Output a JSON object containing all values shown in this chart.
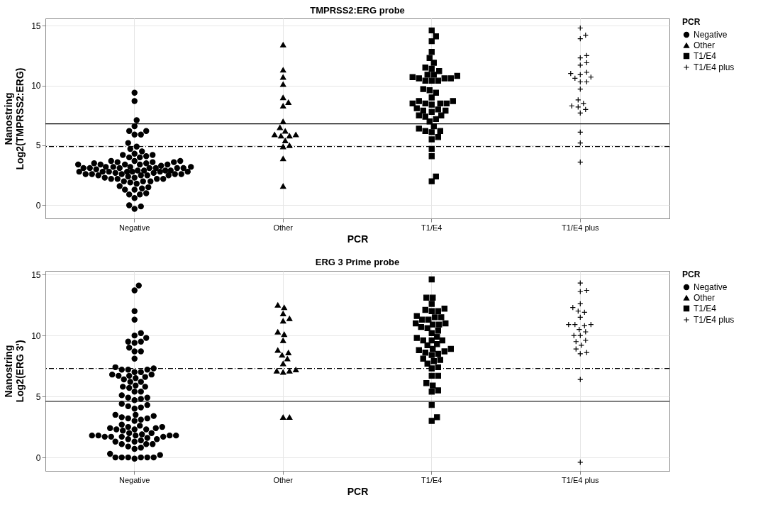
{
  "chart_data": [
    {
      "type": "scatter",
      "title": "TMPRSS2:ERG probe",
      "xlabel": "PCR",
      "ylabel": "Nanostring\nLog2(TMPRSS2:ERG)",
      "legend_title": "PCR",
      "legend": "right",
      "grid": true,
      "categories": [
        "Negative",
        "Other",
        "T1/E4",
        "T1/E4 plus"
      ],
      "ylim": [
        -1.1,
        15.6
      ],
      "yticks": [
        0,
        5,
        10,
        15
      ],
      "ref_lines": [
        {
          "axis": "y",
          "value": 6.8,
          "line_style": "solid"
        },
        {
          "axis": "y",
          "value": 4.9,
          "line_style": "dashed"
        }
      ],
      "series": [
        {
          "name": "Negative",
          "color": "#000000",
          "marker": "circle",
          "x": [
            "Negative",
            "Negative",
            "Negative",
            "Negative",
            "Negative",
            "Negative",
            "Negative",
            "Negative",
            "Negative",
            "Negative",
            "Negative",
            "Negative",
            "Negative",
            "Negative",
            "Negative",
            "Negative",
            "Negative",
            "Negative",
            "Negative",
            "Negative",
            "Negative",
            "Negative",
            "Negative",
            "Negative",
            "Negative",
            "Negative",
            "Negative",
            "Negative",
            "Negative",
            "Negative",
            "Negative",
            "Negative",
            "Negative",
            "Negative",
            "Negative",
            "Negative",
            "Negative",
            "Negative",
            "Negative",
            "Negative",
            "Negative",
            "Negative",
            "Negative",
            "Negative",
            "Negative",
            "Negative",
            "Negative",
            "Negative",
            "Negative",
            "Negative",
            "Negative",
            "Negative",
            "Negative",
            "Negative",
            "Negative",
            "Negative",
            "Negative",
            "Negative",
            "Negative",
            "Negative",
            "Negative",
            "Negative",
            "Negative",
            "Negative",
            "Negative",
            "Negative",
            "Negative",
            "Negative",
            "Negative",
            "Negative",
            "Negative",
            "Negative",
            "Negative",
            "Negative",
            "Negative",
            "Negative",
            "Negative",
            "Negative",
            "Negative",
            "Negative",
            "Negative",
            "Negative",
            "Negative",
            "Negative",
            "Negative",
            "Negative",
            "Negative",
            "Negative",
            "Negative",
            "Negative"
          ],
          "values": [
            4.2,
            2.6,
            2.4,
            2.9,
            2.9,
            3.1,
            1.0,
            3.1,
            2.6,
            2.0,
            4.9,
            3.4,
            3.4,
            2.9,
            2.0,
            3.2,
            2.5,
            -0.1,
            3.1,
            3.7,
            2.8,
            -0.3,
            2.2,
            2.6,
            3.1,
            2.8,
            3.6,
            1.8,
            0.0,
            3.4,
            4.0,
            2.6,
            3.1,
            3.5,
            3.4,
            3.3,
            7.1,
            4.0,
            2.8,
            3.6,
            2.8,
            2.2,
            8.7,
            5.9,
            6.2,
            3.7,
            2.0,
            2.2,
            1.9,
            2.2,
            0.6,
            3.2,
            4.3,
            3.4,
            2.7,
            1.5,
            3.2,
            1.3,
            3.0,
            0.9,
            2.5,
            2.6,
            9.4,
            3.2,
            1.3,
            2.5,
            2.8,
            2.8,
            6.6,
            3.7,
            5.2,
            4.5,
            5.9,
            3.1,
            2.3,
            0.9,
            3.5,
            2.5,
            2.9,
            1.6,
            2.8,
            6.2,
            3.6,
            4.1,
            4.2,
            4.7,
            1.4,
            2.7,
            2.3,
            3.1
          ]
        },
        {
          "name": "Other",
          "color": "#000000",
          "marker": "triangle",
          "x": [
            "Other",
            "Other",
            "Other",
            "Other",
            "Other",
            "Other",
            "Other",
            "Other",
            "Other",
            "Other",
            "Other",
            "Other",
            "Other",
            "Other",
            "Other",
            "Other",
            "Other",
            "Other",
            "Other"
          ],
          "values": [
            10.7,
            13.4,
            5.8,
            4.9,
            3.9,
            1.6,
            9.0,
            7.0,
            6.2,
            5.9,
            8.3,
            8.6,
            6.5,
            5.8,
            11.3,
            10.1,
            5.4,
            5.9,
            5.0
          ]
        },
        {
          "name": "T1/E4",
          "color": "#000000",
          "marker": "square",
          "x": [
            "T1/E4",
            "T1/E4",
            "T1/E4",
            "T1/E4",
            "T1/E4",
            "T1/E4",
            "T1/E4",
            "T1/E4",
            "T1/E4",
            "T1/E4",
            "T1/E4",
            "T1/E4",
            "T1/E4",
            "T1/E4",
            "T1/E4",
            "T1/E4",
            "T1/E4",
            "T1/E4",
            "T1/E4",
            "T1/E4",
            "T1/E4",
            "T1/E4",
            "T1/E4",
            "T1/E4",
            "T1/E4",
            "T1/E4",
            "T1/E4",
            "T1/E4",
            "T1/E4",
            "T1/E4",
            "T1/E4",
            "T1/E4",
            "T1/E4",
            "T1/E4",
            "T1/E4",
            "T1/E4",
            "T1/E4",
            "T1/E4",
            "T1/E4",
            "T1/E4",
            "T1/E4",
            "T1/E4",
            "T1/E4",
            "T1/E4",
            "T1/E4",
            "T1/E4",
            "T1/E4",
            "T1/E4",
            "T1/E4",
            "T1/E4",
            "T1/E4"
          ],
          "values": [
            13.7,
            12.3,
            7.2,
            10.4,
            9.7,
            7.9,
            10.6,
            10.8,
            10.7,
            11.4,
            8.0,
            7.5,
            6.2,
            8.5,
            10.6,
            6.2,
            2.0,
            8.7,
            8.5,
            8.1,
            7.5,
            7.0,
            6.4,
            12.8,
            14.1,
            5.7,
            5.5,
            4.7,
            11.9,
            10.4,
            11.5,
            9.6,
            9.4,
            9.0,
            8.7,
            8.4,
            14.6,
            7.4,
            6.6,
            6.1,
            8.5,
            4.1,
            2.4,
            10.9,
            10.9,
            11.2,
            10.6,
            10.4,
            8.5,
            7.9,
            7.8
          ]
        },
        {
          "name": "T1/E4 plus",
          "color": "#000000",
          "marker": "cross",
          "x": [
            "T1/E4 plus",
            "T1/E4 plus",
            "T1/E4 plus",
            "T1/E4 plus",
            "T1/E4 plus",
            "T1/E4 plus",
            "T1/E4 plus",
            "T1/E4 plus",
            "T1/E4 plus",
            "T1/E4 plus",
            "T1/E4 plus",
            "T1/E4 plus",
            "T1/E4 plus",
            "T1/E4 plus",
            "T1/E4 plus",
            "T1/E4 plus",
            "T1/E4 plus",
            "T1/E4 plus",
            "T1/E4 plus",
            "T1/E4 plus",
            "T1/E4 plus",
            "T1/E4 plus",
            "T1/E4 plus",
            "T1/E4 plus"
          ],
          "values": [
            14.8,
            11.7,
            11.1,
            10.6,
            10.3,
            8.3,
            8.2,
            7.7,
            12.3,
            11.0,
            10.3,
            8.0,
            12.5,
            9.7,
            5.2,
            3.6,
            13.9,
            14.2,
            11.9,
            10.9,
            10.7,
            8.5,
            8.8,
            6.1
          ]
        }
      ]
    },
    {
      "type": "scatter",
      "title": "ERG 3 Prime probe",
      "xlabel": "PCR",
      "ylabel": "Nanostring\nLog2(ERG 3')",
      "legend_title": "PCR",
      "legend": "right",
      "grid": true,
      "categories": [
        "Negative",
        "Other",
        "T1/E4",
        "T1/E4 plus"
      ],
      "ylim": [
        -1.1,
        15.3
      ],
      "yticks": [
        0,
        5,
        10,
        15
      ],
      "ref_lines": [
        {
          "axis": "y",
          "value": 4.6,
          "line_style": "solid"
        },
        {
          "axis": "y",
          "value": 7.3,
          "line_style": "dashed"
        }
      ],
      "series": [
        {
          "name": "Negative",
          "color": "#000000",
          "marker": "circle",
          "x": [
            "Negative",
            "Negative",
            "Negative",
            "Negative",
            "Negative",
            "Negative",
            "Negative",
            "Negative",
            "Negative",
            "Negative",
            "Negative",
            "Negative",
            "Negative",
            "Negative",
            "Negative",
            "Negative",
            "Negative",
            "Negative",
            "Negative",
            "Negative",
            "Negative",
            "Negative",
            "Negative",
            "Negative",
            "Negative",
            "Negative",
            "Negative",
            "Negative",
            "Negative",
            "Negative",
            "Negative",
            "Negative",
            "Negative",
            "Negative",
            "Negative",
            "Negative",
            "Negative",
            "Negative",
            "Negative",
            "Negative",
            "Negative",
            "Negative",
            "Negative",
            "Negative",
            "Negative",
            "Negative",
            "Negative",
            "Negative",
            "Negative",
            "Negative",
            "Negative",
            "Negative",
            "Negative",
            "Negative",
            "Negative",
            "Negative",
            "Negative",
            "Negative",
            "Negative",
            "Negative",
            "Negative",
            "Negative",
            "Negative",
            "Negative",
            "Negative",
            "Negative",
            "Negative",
            "Negative",
            "Negative",
            "Negative",
            "Negative",
            "Negative",
            "Negative",
            "Negative",
            "Negative",
            "Negative",
            "Negative",
            "Negative",
            "Negative",
            "Negative",
            "Negative",
            "Negative",
            "Negative",
            "Negative",
            "Negative",
            "Negative",
            "Negative",
            "Negative",
            "Negative",
            "Negative",
            "Negative",
            "Negative",
            "Negative",
            "Negative",
            "Negative",
            "Negative",
            "Negative"
          ],
          "values": [
            14.1,
            3.3,
            1.1,
            1.5,
            1.5,
            7.4,
            4.9,
            9.5,
            9.4,
            5.7,
            0.3,
            1.1,
            1.7,
            0.0,
            3.1,
            1.8,
            10.0,
            4.7,
            2.5,
            8.7,
            1.3,
            0.9,
            9.5,
            6.7,
            6.5,
            0.7,
            5.4,
            2.0,
            2.3,
            1.7,
            4.4,
            2.0,
            1.9,
            7.0,
            5.9,
            5.4,
            1.7,
            0.0,
            2.3,
            7.2,
            6.8,
            6.6,
            0.2,
            5.1,
            7.2,
            0.0,
            6.8,
            6.7,
            5.8,
            1.3,
            0.8,
            0.0,
            2.4,
            9.0,
            3.2,
            0.0,
            1.8,
            4.2,
            4.9,
            1.7,
            -0.1,
            3.0,
            11.3,
            12.0,
            7.3,
            2.3,
            6.4,
            6.2,
            7.0,
            2.2,
            1.4,
            10.2,
            7.2,
            4.3,
            3.5,
            2.5,
            8.1,
            4.8,
            2.4,
            1.8,
            8.7,
            4.0,
            1.8,
            5.8,
            0.0,
            13.7,
            9.8,
            3.4,
            2.6,
            1.1,
            1.6,
            4.1,
            3.2,
            1.8,
            3.5,
            6.2,
            2.7
          ]
        },
        {
          "name": "Other",
          "color": "#000000",
          "marker": "triangle",
          "x": [
            "Other",
            "Other",
            "Other",
            "Other",
            "Other",
            "Other",
            "Other",
            "Other",
            "Other",
            "Other",
            "Other",
            "Other",
            "Other",
            "Other",
            "Other",
            "Other",
            "Other",
            "Other",
            "Other"
          ],
          "values": [
            12.3,
            11.2,
            8.8,
            8.6,
            8.1,
            7.1,
            11.4,
            7.0,
            3.3,
            3.3,
            8.4,
            7.1,
            9.6,
            11.8,
            10.1,
            10.3,
            7.7,
            7.2,
            12.5
          ]
        },
        {
          "name": "T1/E4",
          "color": "#000000",
          "marker": "square",
          "x": [
            "T1/E4",
            "T1/E4",
            "T1/E4",
            "T1/E4",
            "T1/E4",
            "T1/E4",
            "T1/E4",
            "T1/E4",
            "T1/E4",
            "T1/E4",
            "T1/E4",
            "T1/E4",
            "T1/E4",
            "T1/E4",
            "T1/E4",
            "T1/E4",
            "T1/E4",
            "T1/E4",
            "T1/E4",
            "T1/E4",
            "T1/E4",
            "T1/E4",
            "T1/E4",
            "T1/E4",
            "T1/E4",
            "T1/E4",
            "T1/E4",
            "T1/E4",
            "T1/E4",
            "T1/E4",
            "T1/E4",
            "T1/E4",
            "T1/E4",
            "T1/E4",
            "T1/E4",
            "T1/E4",
            "T1/E4",
            "T1/E4",
            "T1/E4",
            "T1/E4",
            "T1/E4",
            "T1/E4",
            "T1/E4",
            "T1/E4",
            "T1/E4",
            "T1/E4",
            "T1/E4",
            "T1/E4",
            "T1/E4",
            "T1/E4"
          ],
          "values": [
            14.6,
            10.4,
            11.0,
            8.8,
            3.0,
            3.3,
            11.5,
            12.2,
            11.6,
            9.8,
            10.6,
            11.0,
            7.3,
            6.7,
            9.6,
            9.6,
            9.6,
            10.2,
            8.9,
            9.9,
            5.5,
            5.4,
            4.3,
            10.7,
            9.2,
            9.3,
            13.1,
            8.9,
            8.4,
            7.7,
            7.4,
            5.9,
            8.0,
            11.3,
            8.6,
            8.7,
            7.9,
            10.9,
            8.5,
            13.1,
            12.0,
            11.5,
            10.9,
            12.6,
            12.1,
            12.0,
            11.3,
            8.1,
            6.7,
            6.1
          ]
        },
        {
          "name": "T1/E4 plus",
          "color": "#000000",
          "marker": "cross",
          "x": [
            "T1/E4 plus",
            "T1/E4 plus",
            "T1/E4 plus",
            "T1/E4 plus",
            "T1/E4 plus",
            "T1/E4 plus",
            "T1/E4 plus",
            "T1/E4 plus",
            "T1/E4 plus",
            "T1/E4 plus",
            "T1/E4 plus",
            "T1/E4 plus",
            "T1/E4 plus",
            "T1/E4 plus",
            "T1/E4 plus",
            "T1/E4 plus",
            "T1/E4 plus",
            "T1/E4 plus",
            "T1/E4 plus",
            "T1/E4 plus",
            "T1/E4 plus",
            "T1/E4 plus",
            "T1/E4 plus",
            "T1/E4 plus"
          ],
          "values": [
            14.3,
            13.6,
            13.7,
            12.0,
            12.3,
            10.3,
            10.5,
            10.9,
            10.0,
            9.6,
            9.5,
            8.9,
            8.5,
            6.4,
            10.8,
            11.9,
            11.5,
            9.2,
            12.6,
            10.9,
            10.9,
            10.0,
            8.6,
            -0.4
          ]
        }
      ]
    }
  ]
}
